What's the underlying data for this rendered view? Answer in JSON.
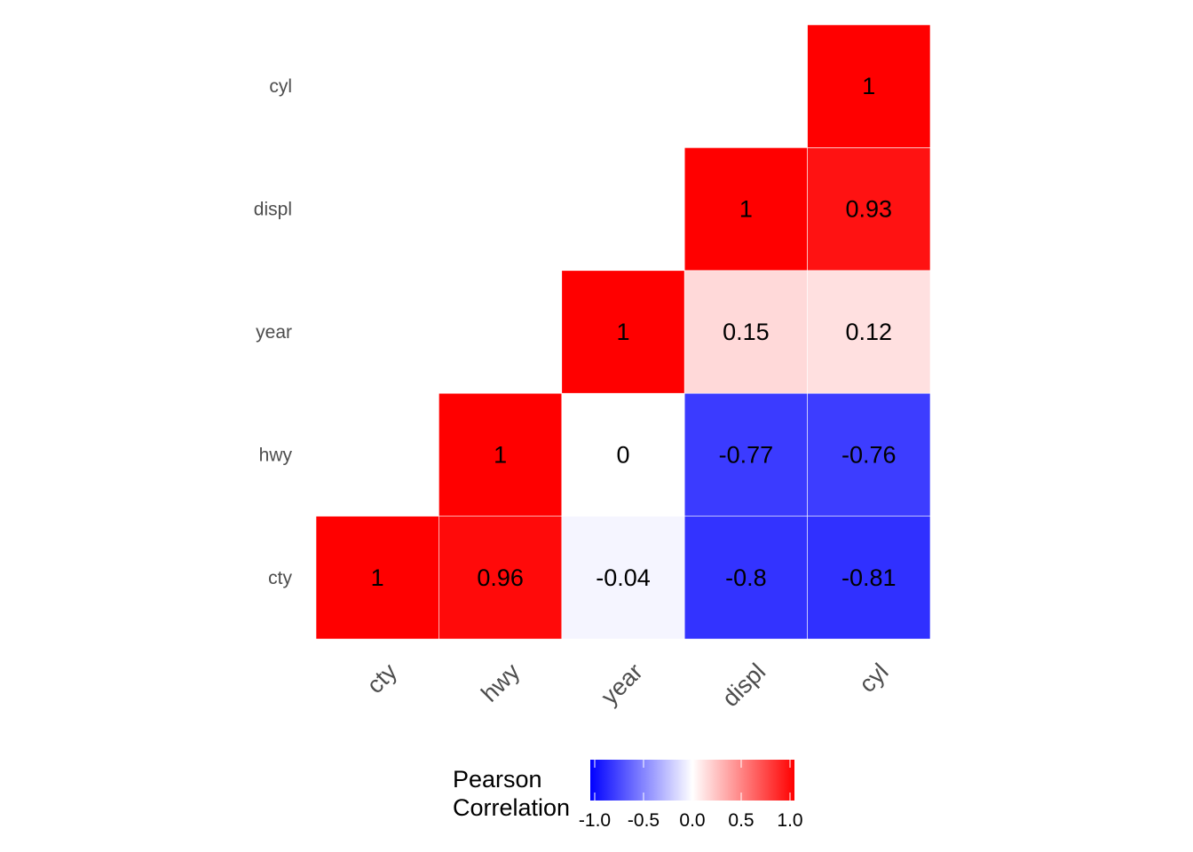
{
  "chart_data": {
    "type": "heatmap",
    "title": "",
    "xlabel": "",
    "ylabel": "",
    "variables_x": [
      "cty",
      "hwy",
      "year",
      "displ",
      "cyl"
    ],
    "variables_y": [
      "cty",
      "hwy",
      "year",
      "displ",
      "cyl"
    ],
    "layout": "lower-triangle",
    "cells": [
      {
        "x": "cty",
        "y": "cty",
        "value": 1,
        "label": "1"
      },
      {
        "x": "hwy",
        "y": "cty",
        "value": 0.96,
        "label": "0.96"
      },
      {
        "x": "year",
        "y": "cty",
        "value": -0.04,
        "label": "-0.04"
      },
      {
        "x": "displ",
        "y": "cty",
        "value": -0.8,
        "label": "-0.8"
      },
      {
        "x": "cyl",
        "y": "cty",
        "value": -0.81,
        "label": "-0.81"
      },
      {
        "x": "hwy",
        "y": "hwy",
        "value": 1,
        "label": "1"
      },
      {
        "x": "year",
        "y": "hwy",
        "value": 0,
        "label": "0"
      },
      {
        "x": "displ",
        "y": "hwy",
        "value": -0.77,
        "label": "-0.77"
      },
      {
        "x": "cyl",
        "y": "hwy",
        "value": -0.76,
        "label": "-0.76"
      },
      {
        "x": "year",
        "y": "year",
        "value": 1,
        "label": "1"
      },
      {
        "x": "displ",
        "y": "year",
        "value": 0.15,
        "label": "0.15"
      },
      {
        "x": "cyl",
        "y": "year",
        "value": 0.12,
        "label": "0.12"
      },
      {
        "x": "displ",
        "y": "displ",
        "value": 1,
        "label": "1"
      },
      {
        "x": "cyl",
        "y": "displ",
        "value": 0.93,
        "label": "0.93"
      },
      {
        "x": "cyl",
        "y": "cyl",
        "value": 1,
        "label": "1"
      }
    ],
    "colorscale": {
      "low": "#0000ff",
      "mid": "#ffffff",
      "high": "#ff0000",
      "limits": [
        -1,
        1
      ]
    },
    "legend": {
      "title_lines": [
        "Pearson",
        "Correlation"
      ],
      "ticks": [
        "-1.0",
        "-0.5",
        "0.0",
        "0.5",
        "1.0"
      ],
      "tick_values": [
        -1,
        -0.5,
        0,
        0.5,
        1
      ],
      "position": "bottom"
    }
  }
}
